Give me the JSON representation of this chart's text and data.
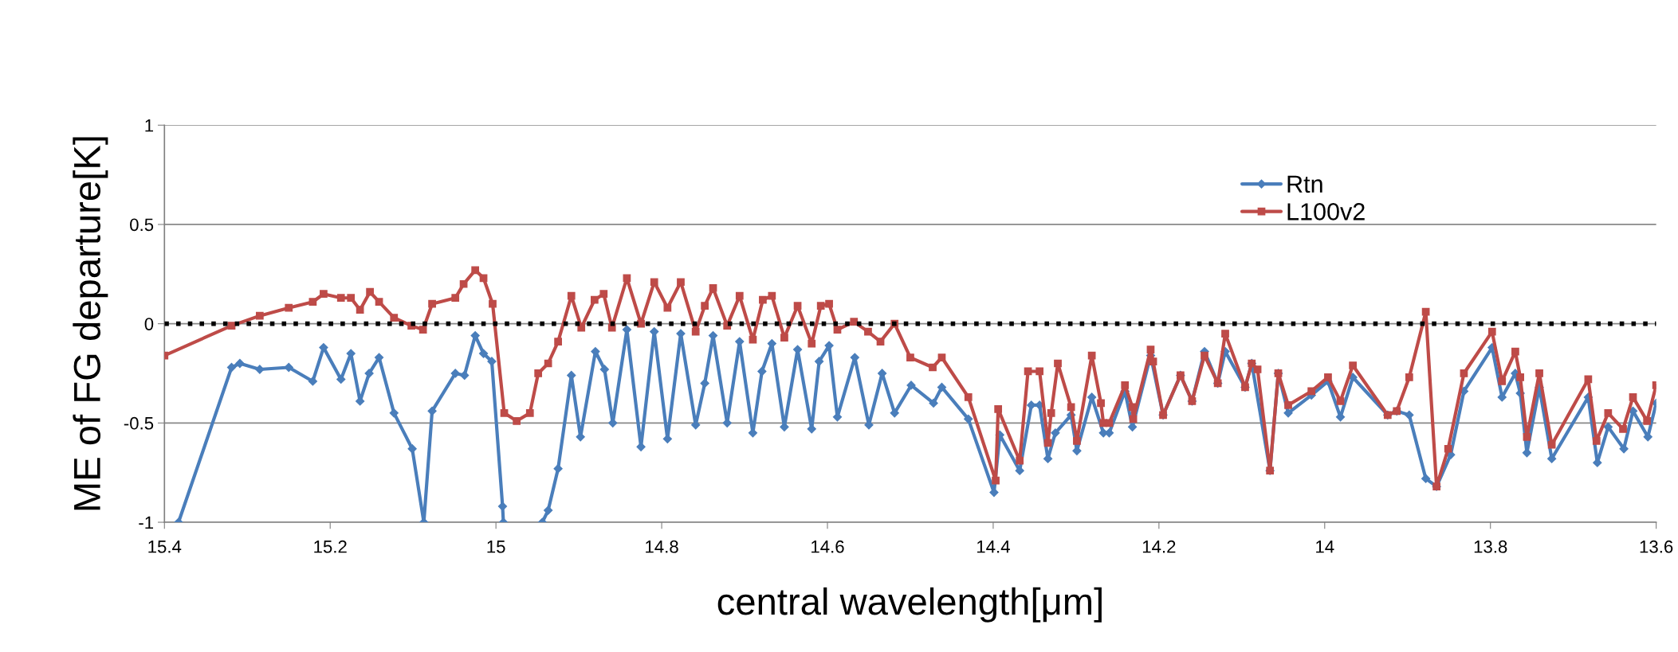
{
  "chart_data": {
    "type": "line",
    "xlabel": "central wavelength[μm]",
    "ylabel": "ME of FG departure[K]",
    "xlim": [
      15.4,
      13.6
    ],
    "ylim": [
      -1,
      1
    ],
    "xticks": [
      15.4,
      15.2,
      15,
      14.8,
      14.6,
      14.4,
      14.2,
      14,
      13.8,
      13.6
    ],
    "yticks": [
      -1,
      -0.5,
      0,
      0.5,
      1
    ],
    "grid": "y",
    "legend": "top right",
    "line_style": "solid",
    "ref_lines": [
      {
        "axis": "y",
        "value": 0,
        "color": "#000000",
        "line_style": "dotted"
      }
    ],
    "series": [
      {
        "name": "Rtn",
        "color": "#4a7ebb",
        "marker": "diamond",
        "x": [
          15.383,
          15.319,
          15.309,
          15.285,
          15.25,
          15.221,
          15.208,
          15.187,
          15.175,
          15.164,
          15.153,
          15.141,
          15.123,
          15.101,
          15.087,
          15.077,
          15.049,
          15.038,
          15.025,
          15.015,
          15.005,
          14.992,
          14.991,
          14.97,
          14.944,
          14.937,
          14.925,
          14.909,
          14.898,
          14.88,
          14.869,
          14.859,
          14.842,
          14.825,
          14.809,
          14.793,
          14.777,
          14.759,
          14.748,
          14.738,
          14.721,
          14.706,
          14.69,
          14.679,
          14.667,
          14.652,
          14.636,
          14.619,
          14.61,
          14.598,
          14.588,
          14.567,
          14.55,
          14.534,
          14.519,
          14.499,
          14.472,
          14.462,
          14.43,
          14.399,
          14.392,
          14.368,
          14.354,
          14.344,
          14.334,
          14.325,
          14.306,
          14.299,
          14.281,
          14.267,
          14.26,
          14.241,
          14.232,
          14.21,
          14.195,
          14.174,
          14.16,
          14.145,
          14.129,
          14.12,
          14.096,
          14.088,
          14.066,
          14.056,
          14.044,
          14.016,
          13.996,
          13.981,
          13.966,
          13.924,
          13.913,
          13.898,
          13.878,
          13.865,
          13.848,
          13.832,
          13.798,
          13.786,
          13.77,
          13.764,
          13.756,
          13.741,
          13.726,
          13.682,
          13.671,
          13.658,
          13.639,
          13.628,
          13.61,
          13.6
        ],
        "values": [
          -1.0,
          -0.22,
          -0.2,
          -0.23,
          -0.22,
          -0.29,
          -0.12,
          -0.28,
          -0.15,
          -0.39,
          -0.25,
          -0.17,
          -0.45,
          -0.63,
          -1.0,
          -0.44,
          -0.25,
          -0.26,
          -0.06,
          -0.15,
          -0.19,
          -0.92,
          -1.0,
          null,
          -1.0,
          -0.94,
          -0.73,
          -0.26,
          -0.57,
          -0.14,
          -0.23,
          -0.5,
          -0.03,
          -0.62,
          -0.04,
          -0.58,
          -0.05,
          -0.51,
          -0.3,
          -0.06,
          -0.5,
          -0.09,
          -0.55,
          -0.24,
          -0.1,
          -0.52,
          -0.13,
          -0.53,
          -0.19,
          -0.11,
          -0.47,
          -0.17,
          -0.51,
          -0.25,
          -0.45,
          -0.31,
          -0.4,
          -0.32,
          -0.48,
          -0.85,
          -0.56,
          -0.74,
          -0.41,
          -0.41,
          -0.68,
          -0.55,
          -0.46,
          -0.64,
          -0.37,
          -0.55,
          -0.55,
          -0.34,
          -0.52,
          -0.16,
          -0.46,
          -0.26,
          -0.39,
          -0.14,
          -0.3,
          -0.14,
          -0.32,
          -0.2,
          -0.74,
          -0.25,
          -0.45,
          -0.36,
          -0.29,
          -0.47,
          -0.27,
          -0.46,
          -0.44,
          -0.46,
          -0.78,
          -0.82,
          -0.66,
          -0.34,
          -0.12,
          -0.37,
          -0.25,
          -0.35,
          -0.65,
          -0.32,
          -0.68,
          -0.37,
          -0.7,
          -0.52,
          -0.63,
          -0.44,
          -0.57,
          -0.4
        ]
      },
      {
        "name": "L100v2",
        "color": "#be4b48",
        "marker": "square",
        "x": [
          15.4,
          15.319,
          15.285,
          15.25,
          15.221,
          15.208,
          15.187,
          15.175,
          15.164,
          15.152,
          15.141,
          15.123,
          15.102,
          15.088,
          15.077,
          15.049,
          15.039,
          15.025,
          15.015,
          15.004,
          14.99,
          14.975,
          14.959,
          14.949,
          14.937,
          14.925,
          14.909,
          14.897,
          14.881,
          14.87,
          14.86,
          14.842,
          14.825,
          14.809,
          14.793,
          14.777,
          14.759,
          14.748,
          14.738,
          14.721,
          14.706,
          14.69,
          14.678,
          14.667,
          14.652,
          14.636,
          14.619,
          14.608,
          14.598,
          14.588,
          14.568,
          14.551,
          14.536,
          14.519,
          14.5,
          14.473,
          14.462,
          14.43,
          14.397,
          14.394,
          14.368,
          14.358,
          14.344,
          14.334,
          14.33,
          14.322,
          14.306,
          14.299,
          14.281,
          14.27,
          14.267,
          14.26,
          14.241,
          14.232,
          14.231,
          14.21,
          14.207,
          14.195,
          14.174,
          14.16,
          14.145,
          14.129,
          14.12,
          14.096,
          14.088,
          14.081,
          14.066,
          14.056,
          14.044,
          14.016,
          13.996,
          13.981,
          13.966,
          13.924,
          13.913,
          13.898,
          13.878,
          13.865,
          13.851,
          13.832,
          13.798,
          13.786,
          13.77,
          13.764,
          13.756,
          13.741,
          13.726,
          13.682,
          13.672,
          13.658,
          13.64,
          13.628,
          13.611,
          13.6
        ],
        "values": [
          -0.16,
          -0.01,
          0.04,
          0.08,
          0.11,
          0.15,
          0.13,
          0.13,
          0.07,
          0.16,
          0.11,
          0.03,
          -0.01,
          -0.03,
          0.1,
          0.13,
          0.2,
          0.27,
          0.23,
          0.1,
          -0.45,
          -0.49,
          -0.45,
          -0.25,
          -0.2,
          -0.09,
          0.14,
          -0.02,
          0.12,
          0.15,
          -0.02,
          0.23,
          0.0,
          0.21,
          0.08,
          0.21,
          -0.04,
          0.09,
          0.18,
          -0.01,
          0.14,
          -0.08,
          0.12,
          0.14,
          -0.07,
          0.09,
          -0.1,
          0.09,
          0.1,
          -0.03,
          0.01,
          -0.04,
          -0.09,
          0.0,
          -0.17,
          -0.22,
          -0.17,
          -0.37,
          -0.79,
          -0.43,
          -0.69,
          -0.24,
          -0.24,
          -0.6,
          -0.45,
          -0.2,
          -0.42,
          -0.59,
          -0.16,
          -0.4,
          -0.5,
          -0.5,
          -0.31,
          -0.42,
          -0.48,
          -0.13,
          -0.19,
          -0.46,
          -0.26,
          -0.39,
          -0.16,
          -0.3,
          -0.05,
          -0.32,
          -0.2,
          -0.23,
          -0.74,
          -0.25,
          -0.41,
          -0.34,
          -0.27,
          -0.39,
          -0.21,
          -0.46,
          -0.44,
          -0.27,
          0.06,
          -0.82,
          -0.63,
          -0.25,
          -0.04,
          -0.29,
          -0.14,
          -0.27,
          -0.57,
          -0.25,
          -0.61,
          -0.28,
          -0.59,
          -0.45,
          -0.53,
          -0.37,
          -0.49,
          -0.31
        ]
      }
    ]
  }
}
